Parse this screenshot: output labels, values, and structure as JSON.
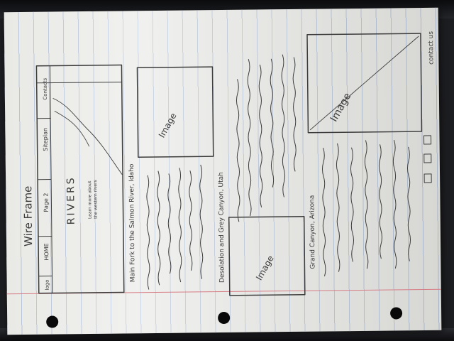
{
  "sheet": {
    "title": "Wire Frame",
    "paper_color": "#e9e9e6",
    "ink_color": "#3c3c3c",
    "rule_color": "#b5c2d8",
    "margin_color": "#d77d86"
  },
  "nav": {
    "logo": "logo",
    "items": [
      "HOME",
      "Page 2",
      "Siteplan",
      "Contacts"
    ]
  },
  "hero": {
    "title": "RIVERS",
    "subtitle_1": "Learn more about",
    "subtitle_2": "the western rivers"
  },
  "sections": [
    {
      "heading": "Main Fork to the Salmon River, Idaho",
      "image_label": "Image"
    },
    {
      "heading": "Desolation and Grey Canyon, Utah",
      "image_label": "Image"
    },
    {
      "heading": "Grand Canyon, Arizona",
      "image_label": "Image"
    }
  ],
  "contact": {
    "label": "contact us",
    "icons": [
      "social-icon-1",
      "social-icon-2",
      "social-icon-3"
    ]
  }
}
